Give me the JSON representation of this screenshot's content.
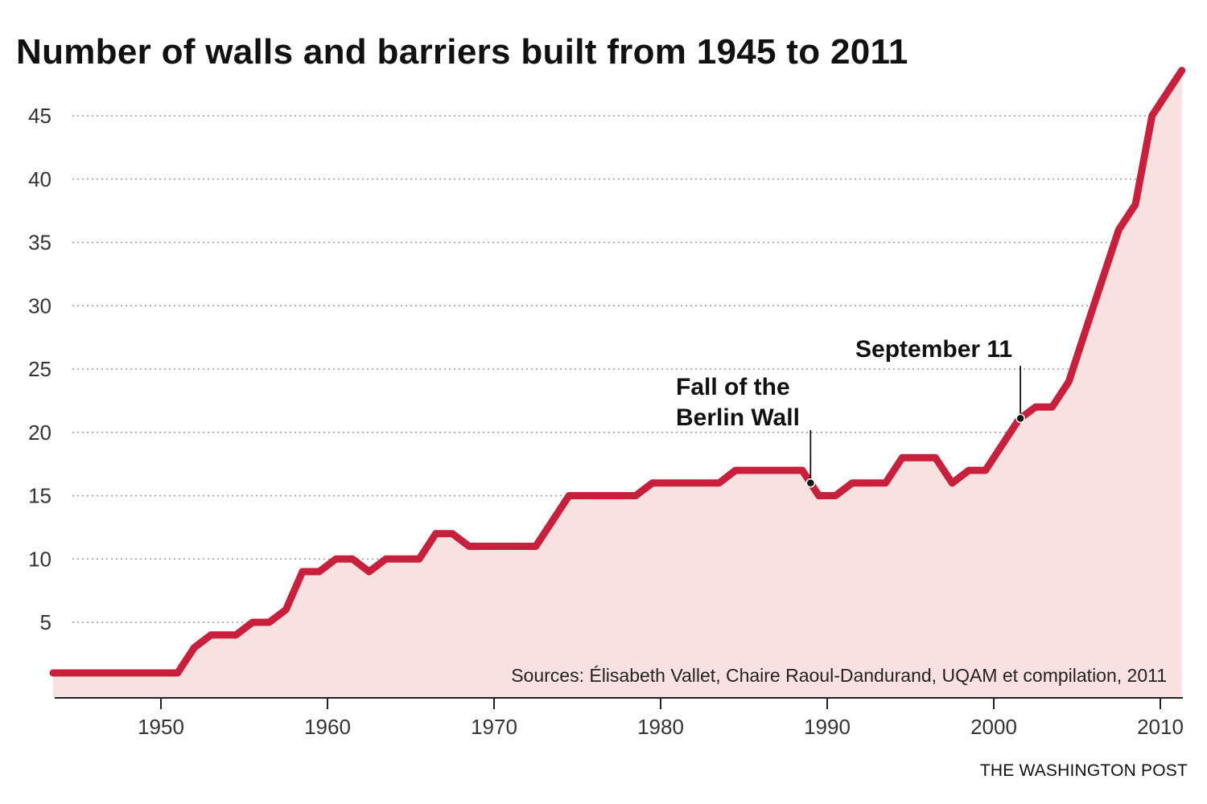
{
  "chart_data": {
    "type": "area",
    "title": "Number of walls and barriers built from 1945 to 2011",
    "xlabel": "",
    "ylabel": "",
    "xlim": [
      1944,
      2011
    ],
    "ylim": [
      0,
      47
    ],
    "x_ticks": [
      1950,
      1960,
      1970,
      1980,
      1990,
      2000,
      2010
    ],
    "y_ticks": [
      5,
      10,
      15,
      20,
      25,
      30,
      35,
      40,
      45
    ],
    "grid": "horizontal dotted",
    "legend": "none",
    "series": [
      {
        "name": "",
        "color": "#c8203c",
        "fill": "#f9e1df",
        "x": [
          1944,
          1951,
          1952,
          1953,
          1954.5,
          1955.5,
          1956.5,
          1957.5,
          1958.5,
          1959.5,
          1960.5,
          1961.5,
          1962.5,
          1963.5,
          1964.5,
          1965.5,
          1966.5,
          1967.5,
          1968.5,
          1969.5,
          1970.5,
          1971.5,
          1972.5,
          1973.5,
          1974.5,
          1975.5,
          1976.5,
          1977.5,
          1978.5,
          1979.5,
          1980.5,
          1981.5,
          1982.5,
          1983.5,
          1984.5,
          1985.5,
          1986.5,
          1987.5,
          1988.5,
          1989.5,
          1990.5,
          1991.5,
          1992.5,
          1993.5,
          1994.5,
          1995.5,
          1996.5,
          1997.5,
          1998.5,
          1999.5,
          2000.5,
          2001.5,
          2002.5,
          2003.5,
          2004.5,
          2005.5,
          2006.5,
          2007.5,
          2008.5,
          2009.5,
          2010.5,
          2011.5
        ],
        "y": [
          1,
          1,
          3,
          4,
          4,
          5,
          5,
          6,
          9,
          9,
          10,
          10,
          9,
          10,
          10,
          10,
          12,
          12,
          11,
          11,
          11,
          11,
          11,
          13,
          15,
          15,
          15,
          15,
          15,
          16,
          16,
          16,
          16,
          16,
          17,
          17,
          17,
          17,
          17,
          15,
          15,
          16,
          16,
          16,
          18,
          18,
          18,
          16,
          17,
          17,
          19,
          21,
          22,
          22,
          24,
          28,
          32,
          36,
          38,
          45,
          47,
          49
        ]
      }
    ],
    "annotations": [
      {
        "lines": [
          "Fall of the",
          "Berlin Wall"
        ],
        "x": 1989,
        "y": 16
      },
      {
        "lines": [
          "September 11"
        ],
        "x": 2001.6,
        "y": 21.1
      }
    ],
    "source": "Sources: Élisabeth Vallet, Chaire Raoul-Dandurand, UQAM et compilation, 2011",
    "credit": "THE WASHINGTON POST"
  }
}
